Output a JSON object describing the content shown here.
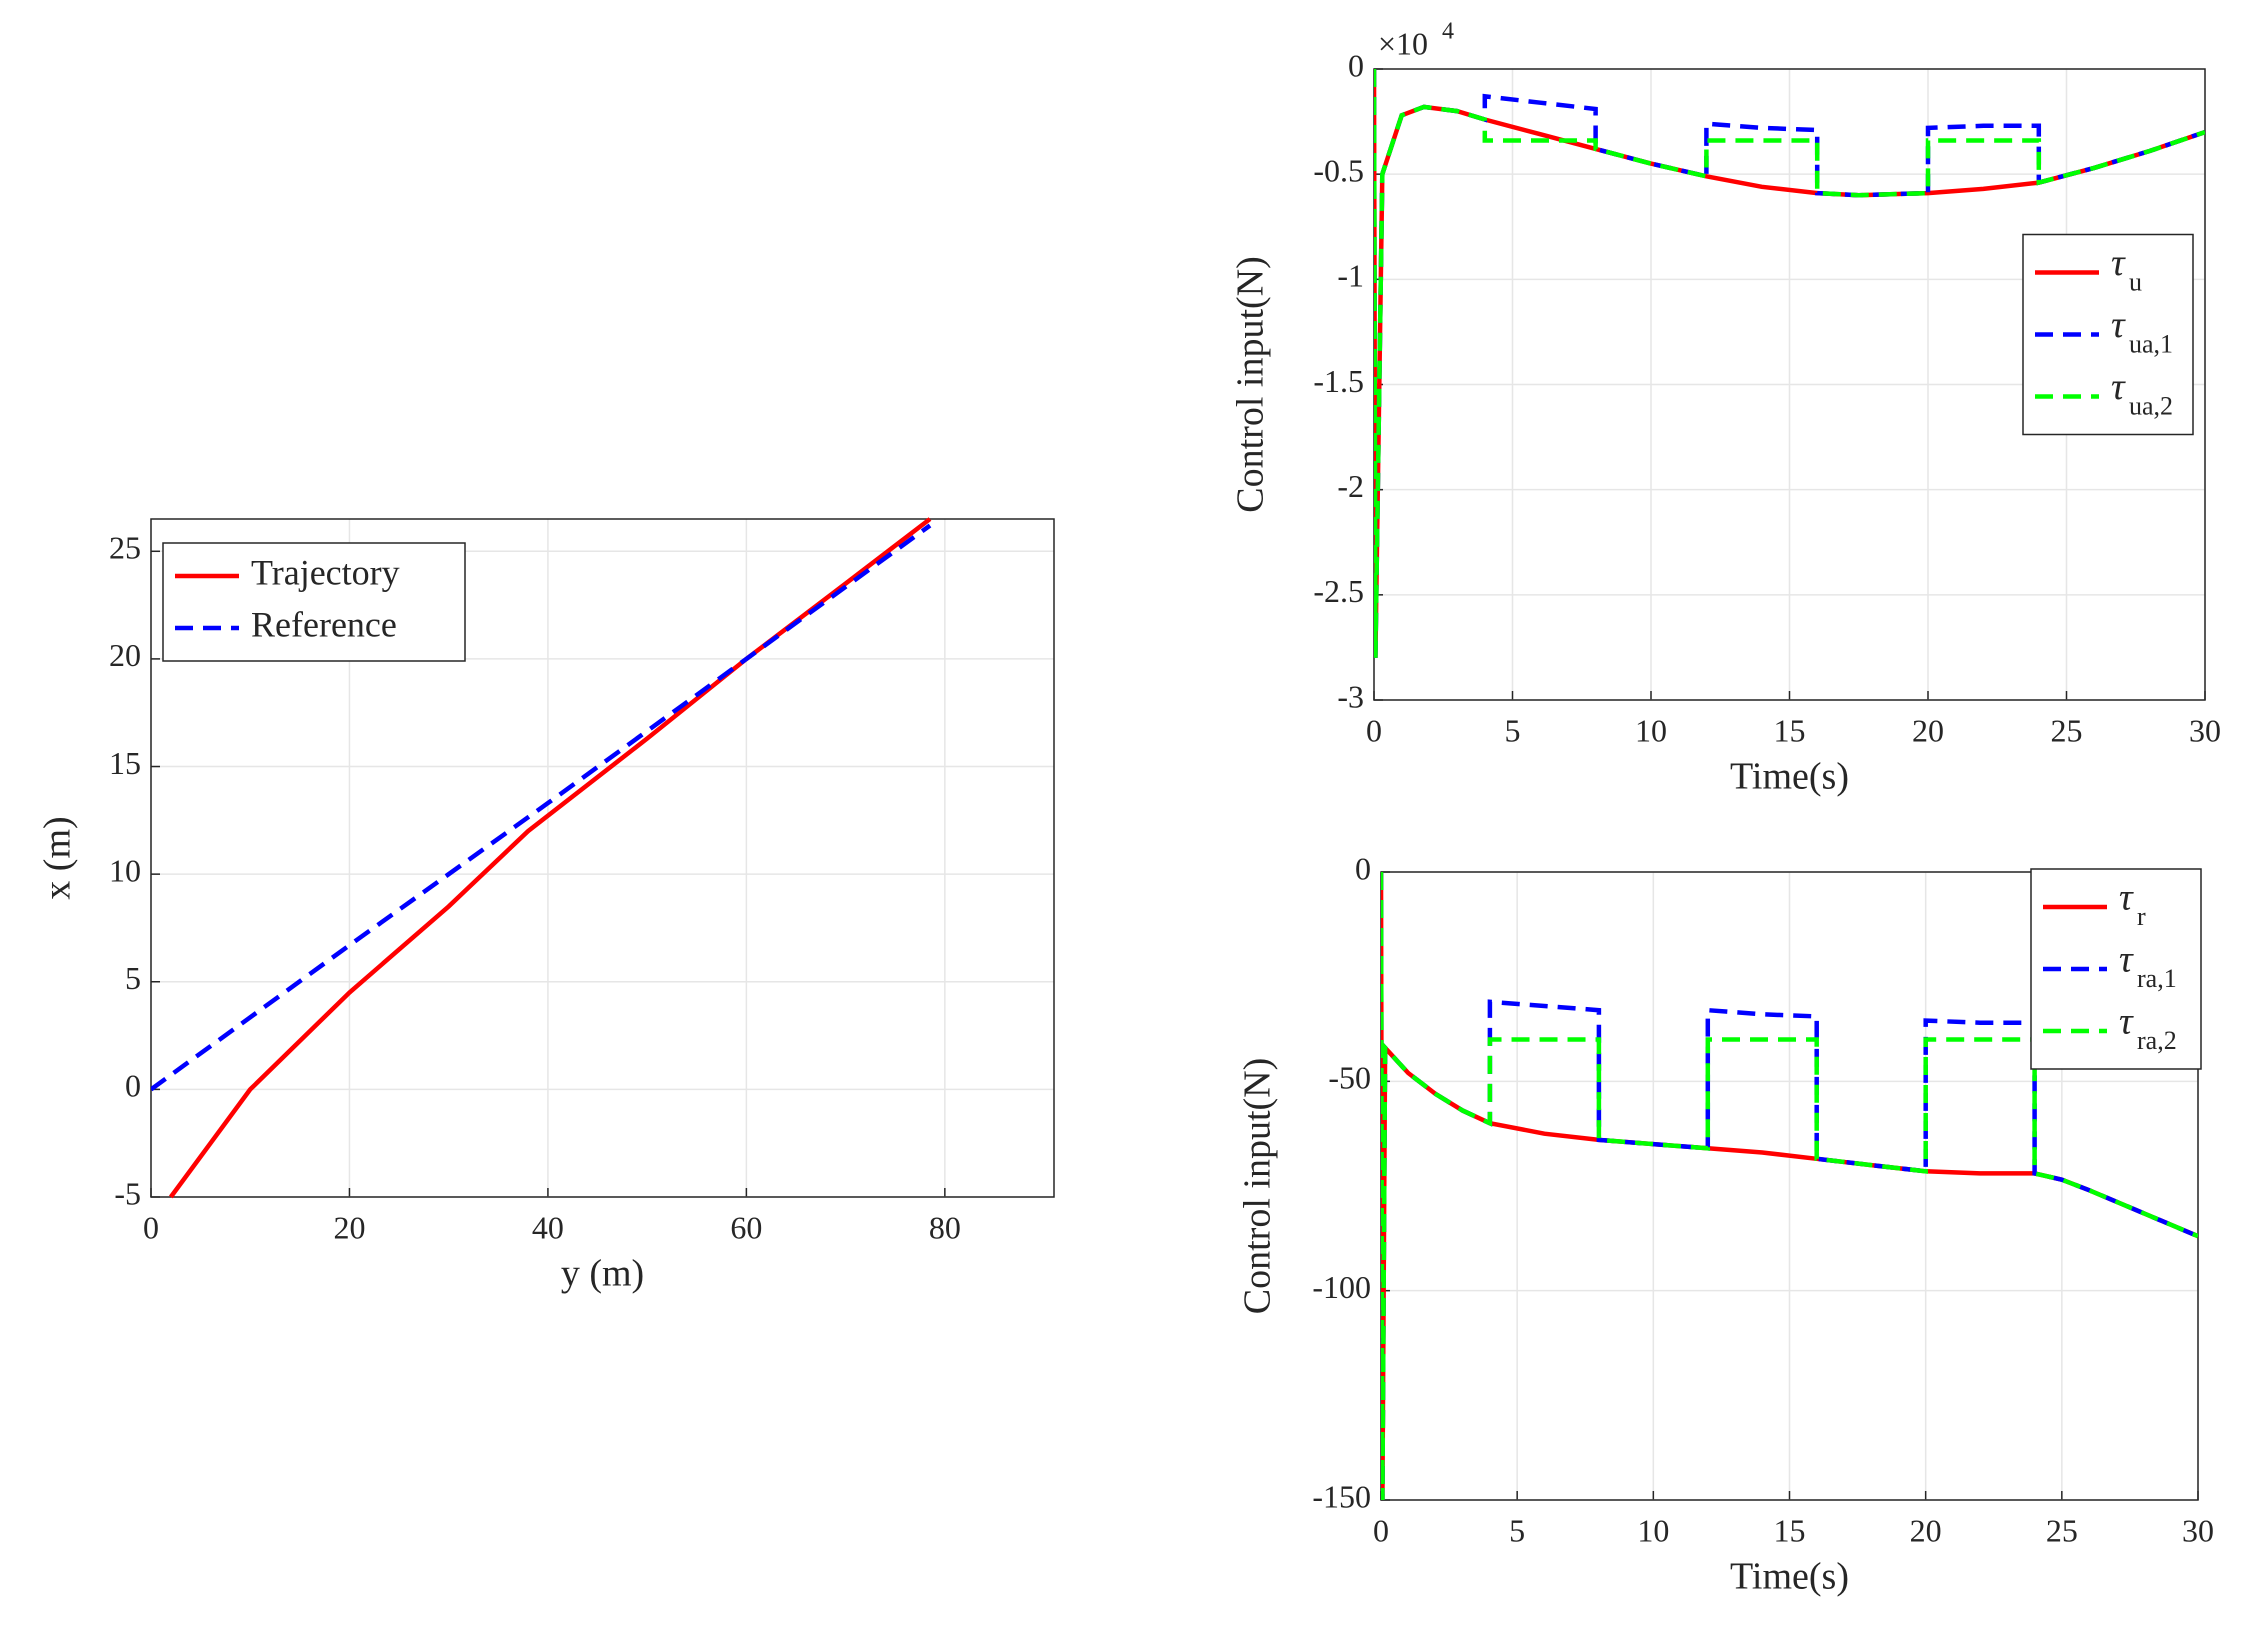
{
  "chart_data": [
    {
      "type": "line",
      "xlabel": "y (m)",
      "ylabel": "x (m)",
      "xlim": [
        0,
        91
      ],
      "ylim": [
        -5,
        26.5
      ],
      "xticks": [
        0,
        20,
        40,
        60,
        80
      ],
      "yticks": [
        -5,
        0,
        5,
        10,
        15,
        20,
        25
      ],
      "grid": true,
      "legend": "northwest",
      "series": [
        {
          "name": "Trajectory",
          "color": "#ff0000",
          "dash": false,
          "x": [
            2,
            10,
            20,
            30,
            38,
            50,
            60,
            70,
            78.5
          ],
          "values": [
            -5,
            0,
            4.5,
            8.5,
            12,
            16.3,
            20,
            23.5,
            26.5
          ]
        },
        {
          "name": "Reference",
          "color": "#0000ff",
          "dash": true,
          "x": [
            0,
            20,
            40,
            60,
            78.5
          ],
          "values": [
            0,
            6.7,
            13.3,
            20,
            26.2
          ]
        }
      ]
    },
    {
      "type": "line",
      "xlabel": "Time(s)",
      "ylabel": "Control input(N)",
      "annotation": "×10",
      "annotation_superscript": "4",
      "xlim": [
        0,
        30
      ],
      "ylim": [
        -3,
        0
      ],
      "xticks": [
        0,
        5,
        10,
        15,
        20,
        25,
        30
      ],
      "yticks": [
        0,
        -0.5,
        -1,
        -1.5,
        -2,
        -2.5,
        -3
      ],
      "grid": true,
      "legend": "east",
      "x": [
        0,
        0.05,
        0.3,
        1,
        1.8,
        3,
        4,
        4,
        6,
        8,
        8,
        10,
        12,
        12,
        14,
        16,
        16,
        17.5,
        20,
        20,
        22,
        24,
        24,
        26,
        28,
        30
      ],
      "series": [
        {
          "name": "τ",
          "subscript": "u",
          "color": "#ff0000",
          "dash": false,
          "values": [
            0,
            -2.8,
            -0.5,
            -0.22,
            -0.18,
            -0.2,
            -0.24,
            -0.24,
            -0.31,
            -0.38,
            -0.38,
            -0.45,
            -0.51,
            -0.51,
            -0.56,
            -0.59,
            -0.59,
            -0.6,
            -0.59,
            -0.59,
            -0.57,
            -0.54,
            -0.54,
            -0.47,
            -0.39,
            -0.3
          ]
        },
        {
          "name": "τ",
          "subscript": "ua,1",
          "color": "#0000ff",
          "dash": true,
          "values": [
            0,
            -2.8,
            -0.5,
            -0.22,
            -0.18,
            -0.2,
            -0.24,
            -0.13,
            -0.16,
            -0.19,
            -0.38,
            -0.45,
            -0.51,
            -0.26,
            -0.28,
            -0.29,
            -0.59,
            -0.6,
            -0.59,
            -0.28,
            -0.27,
            -0.27,
            -0.54,
            -0.47,
            -0.39,
            -0.3
          ]
        },
        {
          "name": "τ",
          "subscript": "ua,2",
          "color": "#00ff00",
          "dash": true,
          "values": [
            0,
            -2.8,
            -0.5,
            -0.22,
            -0.18,
            -0.2,
            -0.24,
            -0.34,
            -0.34,
            -0.34,
            -0.38,
            -0.45,
            -0.51,
            -0.34,
            -0.34,
            -0.34,
            -0.59,
            -0.6,
            -0.59,
            -0.34,
            -0.34,
            -0.34,
            -0.54,
            -0.47,
            -0.39,
            -0.3
          ]
        }
      ]
    },
    {
      "type": "line",
      "xlabel": "Time(s)",
      "ylabel": "Control input(N)",
      "xlim": [
        0,
        30
      ],
      "ylim": [
        -150,
        0
      ],
      "xticks": [
        0,
        5,
        10,
        15,
        20,
        25,
        30
      ],
      "yticks": [
        0,
        -50,
        -100,
        -150
      ],
      "grid": true,
      "legend": "northeast",
      "x": [
        0,
        0.05,
        0.15,
        1,
        2,
        3,
        4,
        4,
        6,
        8,
        8,
        10,
        12,
        12,
        14,
        16,
        16,
        18,
        20,
        20,
        22,
        24,
        24,
        25,
        26,
        28,
        30
      ],
      "series": [
        {
          "name": "τ",
          "subscript": "r",
          "color": "#ff0000",
          "dash": false,
          "values": [
            0,
            -150,
            -42,
            -48,
            -53,
            -57,
            -60,
            -60,
            -62.5,
            -64,
            -64,
            -65,
            -66,
            -66,
            -67,
            -68.5,
            -68.5,
            -70,
            -71.5,
            -71.5,
            -72,
            -72,
            -72,
            -73.5,
            -76,
            -81.5,
            -87
          ]
        },
        {
          "name": "τ",
          "subscript": "ra,1",
          "color": "#0000ff",
          "dash": true,
          "values": [
            0,
            -150,
            -42,
            -48,
            -53,
            -57,
            -60,
            -31,
            -32,
            -33,
            -64,
            -65,
            -66,
            -33,
            -34,
            -34.5,
            -68.5,
            -70,
            -71.5,
            -35.5,
            -36,
            -36,
            -72,
            -73.5,
            -76,
            -81.5,
            -87
          ]
        },
        {
          "name": "τ",
          "subscript": "ra,2",
          "color": "#00ff00",
          "dash": true,
          "values": [
            0,
            -150,
            -42,
            -48,
            -53,
            -57,
            -60,
            -40,
            -40,
            -40,
            -64,
            -65,
            -66,
            -40,
            -40,
            -40,
            -68.5,
            -70,
            -71.5,
            -40,
            -40,
            -40,
            -72,
            -73.5,
            -76,
            -81.5,
            -87
          ]
        }
      ]
    }
  ]
}
